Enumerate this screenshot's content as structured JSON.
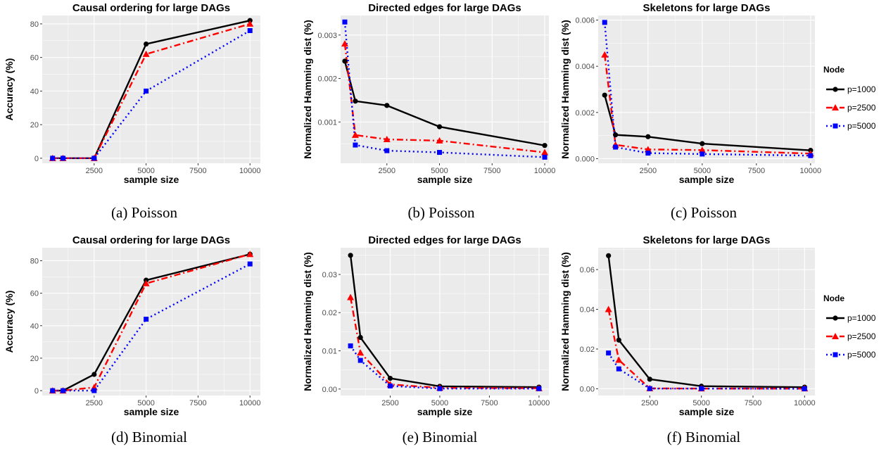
{
  "legend": {
    "title": "Node",
    "entries": [
      "p=1000",
      "p=2500",
      "p=5000"
    ]
  },
  "series_style": [
    {
      "color": "#000000",
      "dash": "solid",
      "marker": "circle"
    },
    {
      "color": "#ff0000",
      "dash": "dashdot",
      "marker": "triangle"
    },
    {
      "color": "#0000ff",
      "dash": "dotted",
      "marker": "square"
    }
  ],
  "panel_background": "#ebebeb",
  "grid_color": "#ffffff",
  "chart_data": [
    {
      "type": "line",
      "caption": "(a) Poisson",
      "title": "Causal ordering for large DAGs",
      "xlabel": "sample size",
      "ylabel": "Accuracy (%)",
      "xlim": [
        0,
        10500
      ],
      "ylim": [
        -3,
        85
      ],
      "xticks": [
        2500,
        5000,
        7500,
        10000
      ],
      "xtick_labels": [
        "2500",
        "5000",
        "7500",
        "10000"
      ],
      "yticks": [
        0,
        20,
        40,
        60,
        80
      ],
      "ytick_labels": [
        "0",
        "20",
        "40",
        "60",
        "80"
      ],
      "x": [
        500,
        1000,
        2500,
        5000,
        10000
      ],
      "series": [
        {
          "name": "p=1000",
          "values": [
            0,
            0,
            0,
            68,
            82
          ]
        },
        {
          "name": "p=2500",
          "values": [
            0,
            0,
            0,
            62,
            80
          ]
        },
        {
          "name": "p=5000",
          "values": [
            0,
            0,
            0,
            40,
            76
          ]
        }
      ]
    },
    {
      "type": "line",
      "caption": "(b) Poisson",
      "title": "Directed edges for large DAGs",
      "xlabel": "sample size",
      "ylabel": "Normalized Hamming dist (%)",
      "xlim": [
        300,
        10200
      ],
      "ylim": [
        5e-05,
        0.00345
      ],
      "xticks": [
        2500,
        5000,
        7500,
        10000
      ],
      "xtick_labels": [
        "2500",
        "5000",
        "7500",
        "10000"
      ],
      "yticks": [
        0.001,
        0.002,
        0.003
      ],
      "ytick_labels": [
        "0.001",
        "0.002",
        "0.003"
      ],
      "x": [
        500,
        1000,
        2500,
        5000,
        10000
      ],
      "series": [
        {
          "name": "p=1000",
          "values": [
            0.0024,
            0.00148,
            0.00138,
            0.00089,
            0.00046
          ]
        },
        {
          "name": "p=2500",
          "values": [
            0.0028,
            0.0007,
            0.0006,
            0.00057,
            0.0003
          ]
        },
        {
          "name": "p=5000",
          "values": [
            0.0033,
            0.00047,
            0.00034,
            0.0003,
            0.00019
          ]
        }
      ]
    },
    {
      "type": "line",
      "caption": "(c) Poisson",
      "title": "Skeletons for large DAGs",
      "xlabel": "sample size",
      "ylabel": "Normalized Hamming dist (%)",
      "xlim": [
        200,
        10200
      ],
      "ylim": [
        -0.0002,
        0.0062
      ],
      "xticks": [
        2500,
        5000,
        7500,
        10000
      ],
      "xtick_labels": [
        "2500",
        "5000",
        "7500",
        "10000"
      ],
      "yticks": [
        0,
        0.002,
        0.004,
        0.006
      ],
      "ytick_labels": [
        "0.000",
        "0.002",
        "0.004",
        "0.006"
      ],
      "x": [
        500,
        1000,
        2500,
        5000,
        10000
      ],
      "series": [
        {
          "name": "p=1000",
          "values": [
            0.00275,
            0.00103,
            0.00095,
            0.00065,
            0.00036
          ]
        },
        {
          "name": "p=2500",
          "values": [
            0.0045,
            0.0006,
            0.0004,
            0.00037,
            0.00022
          ]
        },
        {
          "name": "p=5000",
          "values": [
            0.0059,
            0.0005,
            0.00024,
            0.0002,
            0.00013
          ]
        }
      ]
    },
    {
      "type": "line",
      "caption": "(d) Binomial",
      "title": "Causal ordering for large DAGs",
      "xlabel": "sample size",
      "ylabel": "Accuracy (%)",
      "xlim": [
        0,
        10500
      ],
      "ylim": [
        -3,
        88
      ],
      "xticks": [
        2500,
        5000,
        7500,
        10000
      ],
      "xtick_labels": [
        "2500",
        "5000",
        "7500",
        "10000"
      ],
      "yticks": [
        0,
        20,
        40,
        60,
        80
      ],
      "ytick_labels": [
        "0",
        "20",
        "40",
        "60",
        "80"
      ],
      "x": [
        500,
        1000,
        2500,
        5000,
        10000
      ],
      "series": [
        {
          "name": "p=1000",
          "values": [
            0,
            0,
            10,
            68,
            84
          ]
        },
        {
          "name": "p=2500",
          "values": [
            0,
            0,
            2,
            66,
            84
          ]
        },
        {
          "name": "p=5000",
          "values": [
            0,
            0,
            0,
            44,
            78
          ]
        }
      ]
    },
    {
      "type": "line",
      "caption": "(e) Binomial",
      "title": "Directed edges for large DAGs",
      "xlabel": "sample size",
      "ylabel": "Normalized Hamming dist (%)",
      "xlim": [
        0,
        10500
      ],
      "ylim": [
        -0.0017,
        0.037
      ],
      "xticks": [
        2500,
        5000,
        7500,
        10000
      ],
      "xtick_labels": [
        "2500",
        "5000",
        "7500",
        "10000"
      ],
      "yticks": [
        0,
        0.01,
        0.02,
        0.03
      ],
      "ytick_labels": [
        "0.00",
        "0.01",
        "0.02",
        "0.03"
      ],
      "x": [
        500,
        1000,
        2500,
        5000,
        10000
      ],
      "series": [
        {
          "name": "p=1000",
          "values": [
            0.035,
            0.0135,
            0.0028,
            0.0007,
            0.0005
          ]
        },
        {
          "name": "p=2500",
          "values": [
            0.024,
            0.0095,
            0.0012,
            0.0003,
            0.0002
          ]
        },
        {
          "name": "p=5000",
          "values": [
            0.0113,
            0.0075,
            0.0008,
            0.0001,
            0.0001
          ]
        }
      ]
    },
    {
      "type": "line",
      "caption": "(f) Binomial",
      "title": "Skeletons for large DAGs",
      "xlabel": "sample size",
      "ylabel": "Normalized Hamming dist (%)",
      "xlim": [
        0,
        10500
      ],
      "ylim": [
        -0.0034,
        0.071
      ],
      "xticks": [
        2500,
        5000,
        7500,
        10000
      ],
      "xtick_labels": [
        "2500",
        "5000",
        "7500",
        "10000"
      ],
      "yticks": [
        0,
        0.02,
        0.04,
        0.06
      ],
      "ytick_labels": [
        "0.00",
        "0.02",
        "0.04",
        "0.06"
      ],
      "x": [
        500,
        1000,
        2500,
        5000,
        10000
      ],
      "series": [
        {
          "name": "p=1000",
          "values": [
            0.067,
            0.0245,
            0.0048,
            0.0013,
            0.0008
          ]
        },
        {
          "name": "p=2500",
          "values": [
            0.04,
            0.0145,
            0.0002,
            0.0001,
            0.0001
          ]
        },
        {
          "name": "p=5000",
          "values": [
            0.018,
            0.01,
            0.0001,
            0.0001,
            0.0
          ]
        }
      ]
    }
  ]
}
